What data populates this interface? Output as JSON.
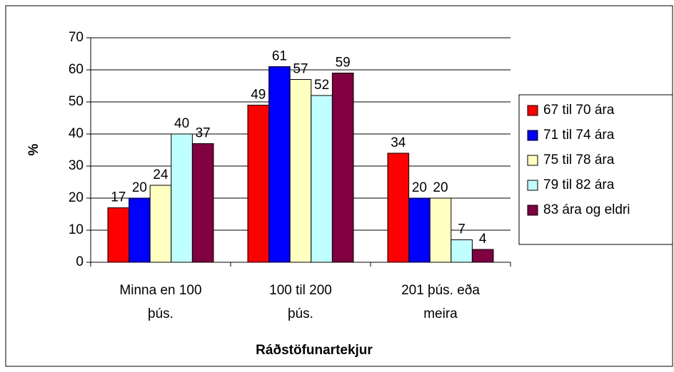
{
  "chart_data": {
    "type": "bar",
    "categories": [
      "Minna en 100 þús.",
      "100 til 200 þús.",
      "201 þús. eða meira"
    ],
    "series": [
      {
        "name": "67 til 70 ára",
        "color": "#ff0000",
        "values": [
          17,
          49,
          34
        ]
      },
      {
        "name": "71 til 74 ára",
        "color": "#0000ff",
        "values": [
          20,
          61,
          20
        ]
      },
      {
        "name": "75 til 78 ára",
        "color": "#ffffc0",
        "values": [
          24,
          57,
          20
        ]
      },
      {
        "name": "79 til 82 ára",
        "color": "#c0ffff",
        "values": [
          40,
          52,
          7
        ]
      },
      {
        "name": "83 ára og eldri",
        "color": "#800040",
        "values": [
          37,
          59,
          4
        ]
      }
    ],
    "ylabel": "%",
    "xlabel": "Ráðstöfunartekjur",
    "ylim": [
      0,
      70
    ],
    "yticks": [
      0,
      10,
      20,
      30,
      40,
      50,
      60,
      70
    ],
    "grid": true,
    "legend": "right"
  }
}
